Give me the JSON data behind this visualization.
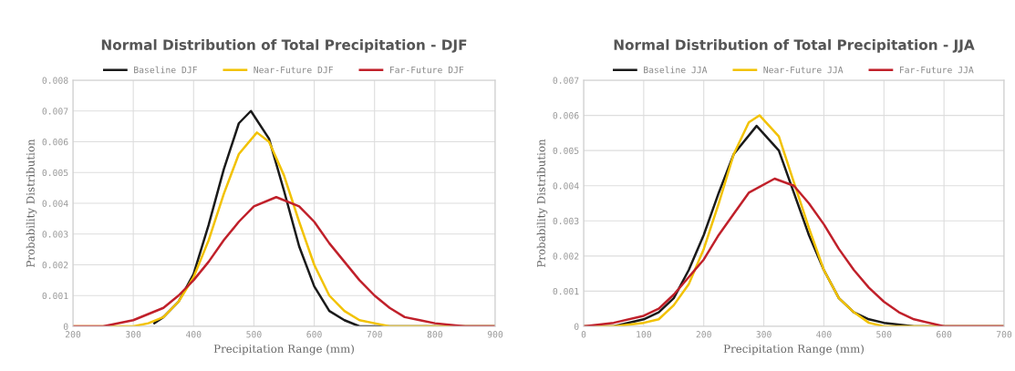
{
  "chart_data": [
    {
      "type": "line",
      "title": "Normal Distribution of Total Precipitation - DJF",
      "xlabel": "Precipitation Range (mm)",
      "ylabel": "Probability Distribution",
      "xlim": [
        200,
        900
      ],
      "xticks": [
        200,
        300,
        400,
        500,
        600,
        700,
        800,
        900
      ],
      "ylim": [
        0,
        0.008
      ],
      "yticks": [
        0,
        0.001,
        0.002,
        0.003,
        0.004,
        0.005,
        0.006,
        0.007,
        0.008
      ],
      "grid": true,
      "legend": "top",
      "marker": "none",
      "line_style": "solid",
      "series": [
        {
          "name": "Baseline DJF",
          "color": "#1a1a1a",
          "x": [
            335,
            350,
            375,
            400,
            425,
            450,
            475,
            495,
            525,
            550,
            575,
            600,
            625,
            650,
            675,
            700,
            900
          ],
          "values": [
            0.0001,
            0.0003,
            0.0008,
            0.0017,
            0.0033,
            0.0051,
            0.0066,
            0.007,
            0.0061,
            0.0044,
            0.0026,
            0.0013,
            0.0005,
            0.0002,
            0,
            0,
            0
          ]
        },
        {
          "name": "Near-Future DJF",
          "color": "#f2c200",
          "x": [
            200,
            300,
            325,
            350,
            375,
            400,
            425,
            450,
            475,
            505,
            525,
            550,
            575,
            600,
            625,
            650,
            675,
            700,
            725,
            900
          ],
          "values": [
            0,
            0,
            0.0001,
            0.0003,
            0.0008,
            0.0016,
            0.0028,
            0.0043,
            0.0056,
            0.0063,
            0.006,
            0.0049,
            0.0034,
            0.002,
            0.001,
            0.0005,
            0.0002,
            0.0001,
            0,
            0
          ]
        },
        {
          "name": "Far-Future DJF",
          "color": "#c0202a",
          "x": [
            200,
            250,
            300,
            325,
            350,
            375,
            400,
            425,
            450,
            475,
            500,
            537,
            575,
            600,
            625,
            650,
            675,
            700,
            725,
            750,
            775,
            800,
            850,
            900
          ],
          "values": [
            0,
            0,
            0.0002,
            0.0004,
            0.0006,
            0.001,
            0.0015,
            0.0021,
            0.0028,
            0.0034,
            0.0039,
            0.0042,
            0.0039,
            0.0034,
            0.0027,
            0.0021,
            0.0015,
            0.001,
            0.0006,
            0.0003,
            0.0002,
            0.0001,
            0,
            0
          ]
        }
      ]
    },
    {
      "type": "line",
      "title": "Normal Distribution of Total Precipitation - JJA",
      "xlabel": "Precipitation Range (mm)",
      "ylabel": "Probability Distribution",
      "xlim": [
        0,
        700
      ],
      "xticks": [
        0,
        100,
        200,
        300,
        400,
        500,
        600,
        700
      ],
      "ylim": [
        0,
        0.007
      ],
      "yticks": [
        0,
        0.001,
        0.002,
        0.003,
        0.004,
        0.005,
        0.006,
        0.007
      ],
      "grid": true,
      "legend": "top",
      "marker": "none",
      "line_style": "solid",
      "series": [
        {
          "name": "Baseline JJA",
          "color": "#1a1a1a",
          "x": [
            0,
            50,
            100,
            125,
            150,
            175,
            200,
            225,
            250,
            288,
            325,
            350,
            375,
            400,
            425,
            450,
            475,
            500,
            550,
            700
          ],
          "values": [
            0,
            0,
            0.0002,
            0.0004,
            0.0008,
            0.0016,
            0.0026,
            0.0038,
            0.0049,
            0.0057,
            0.005,
            0.0038,
            0.0026,
            0.0016,
            0.0008,
            0.0004,
            0.0002,
            0.0001,
            0,
            0
          ]
        },
        {
          "name": "Near-Future JJA",
          "color": "#f2c200",
          "x": [
            0,
            50,
            100,
            125,
            150,
            175,
            200,
            225,
            250,
            275,
            293,
            325,
            350,
            375,
            400,
            425,
            450,
            475,
            500,
            550,
            700
          ],
          "values": [
            0,
            0,
            0.0001,
            0.0002,
            0.0006,
            0.0012,
            0.0022,
            0.0035,
            0.0049,
            0.0058,
            0.006,
            0.0054,
            0.0041,
            0.0028,
            0.0016,
            0.0008,
            0.0004,
            0.0001,
            0,
            0,
            0
          ]
        },
        {
          "name": "Far-Future JJA",
          "color": "#c0202a",
          "x": [
            0,
            50,
            100,
            125,
            150,
            175,
            200,
            225,
            250,
            275,
            318,
            350,
            375,
            400,
            425,
            450,
            475,
            500,
            525,
            550,
            600,
            650,
            700
          ],
          "values": [
            0,
            0.0001,
            0.0003,
            0.0005,
            0.0009,
            0.0014,
            0.0019,
            0.0026,
            0.0032,
            0.0038,
            0.0042,
            0.004,
            0.0035,
            0.0029,
            0.0022,
            0.0016,
            0.0011,
            0.0007,
            0.0004,
            0.0002,
            0,
            0,
            0
          ]
        }
      ]
    }
  ]
}
